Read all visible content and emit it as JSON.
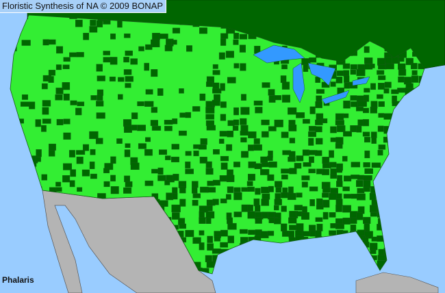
{
  "title": "Floristic Synthesis of NA © 2009 BONAP",
  "taxon_label": "Phalaris",
  "colors": {
    "ocean": "#99ccff",
    "lakes": "#3399ff",
    "present_county": "#33ee33",
    "present_county_dark": "#006600",
    "canada": "#006600",
    "mexico": "#b4b4b4",
    "boundaries": "#333333"
  }
}
